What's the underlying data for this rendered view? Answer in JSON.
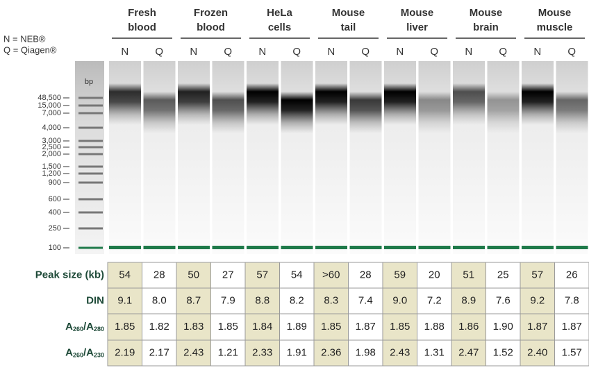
{
  "legend": [
    "N = NEB®",
    "Q = Qiagen®"
  ],
  "groups": [
    {
      "line1": "Fresh",
      "line2": "blood"
    },
    {
      "line1": "Frozen",
      "line2": "blood"
    },
    {
      "line1": "HeLa",
      "line2": "cells"
    },
    {
      "line1": "Mouse",
      "line2": "tail"
    },
    {
      "line1": "Mouse",
      "line2": "liver"
    },
    {
      "line1": "Mouse",
      "line2": "brain"
    },
    {
      "line1": "Mouse",
      "line2": "muscle"
    }
  ],
  "lanes": [
    "N",
    "Q",
    "N",
    "Q",
    "N",
    "Q",
    "N",
    "Q",
    "N",
    "Q",
    "N",
    "Q",
    "N",
    "Q"
  ],
  "ladder": {
    "unit": "bp",
    "labels": [
      "48,500",
      "15,000",
      "7,000",
      "4,000",
      "3,000",
      "2,500",
      "2,000",
      "1,500",
      "1,200",
      "900",
      "600",
      "400",
      "250",
      "100"
    ]
  },
  "table": {
    "rows": [
      {
        "label": [
          "Peak size (kb)"
        ],
        "values": [
          "54",
          "28",
          "50",
          "27",
          "57",
          "54",
          ">60",
          "28",
          "59",
          "20",
          "51",
          "25",
          "57",
          "26"
        ]
      },
      {
        "label": [
          "DIN"
        ],
        "values": [
          "9.1",
          "8.0",
          "8.7",
          "7.9",
          "8.8",
          "8.2",
          "8.3",
          "7.4",
          "9.0",
          "7.2",
          "8.9",
          "7.6",
          "9.2",
          "7.8"
        ]
      },
      {
        "label": [
          "A",
          "260",
          "/A",
          "280"
        ],
        "values": [
          "1.85",
          "1.82",
          "1.83",
          "1.85",
          "1.84",
          "1.89",
          "1.85",
          "1.87",
          "1.85",
          "1.88",
          "1.86",
          "1.90",
          "1.87",
          "1.87"
        ]
      },
      {
        "label": [
          "A",
          "260",
          "/A",
          "230"
        ],
        "values": [
          "2.19",
          "2.17",
          "2.43",
          "1.21",
          "2.33",
          "1.91",
          "2.36",
          "1.98",
          "2.43",
          "1.31",
          "2.47",
          "1.52",
          "2.40",
          "1.57"
        ]
      }
    ]
  }
}
